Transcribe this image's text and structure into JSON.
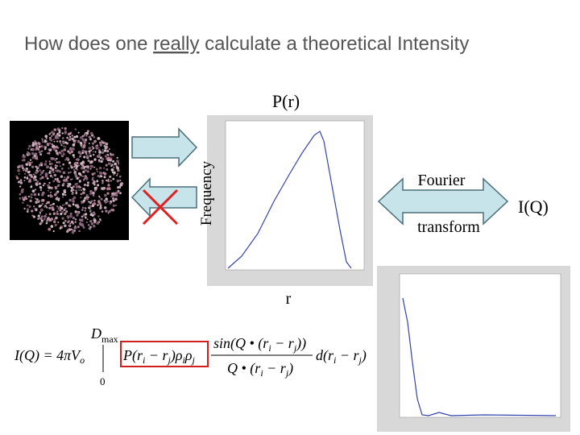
{
  "header": {
    "title_before": "How does one ",
    "title_underlined": "really",
    "title_after": " calculate a theoretical Intensity"
  },
  "pr_plot": {
    "title": "P(r)",
    "y_label": "Frequency",
    "x_label": "r"
  },
  "transform": {
    "line1": "Fourier",
    "line2": "transform",
    "result": "I(Q)"
  },
  "formula": {
    "parts": [
      "I(Q) = 4πV",
      "o",
      "D",
      "max",
      "0",
      "P(r",
      "i",
      " − r",
      "j",
      ")ρ",
      "i",
      "ρ",
      "j",
      "sin(Q • (r",
      "i",
      " − r",
      "j",
      "))",
      "Q • (r",
      "i",
      " − r",
      "j",
      ")",
      "d(r",
      "i",
      " − r",
      "j",
      ")"
    ]
  }
}
